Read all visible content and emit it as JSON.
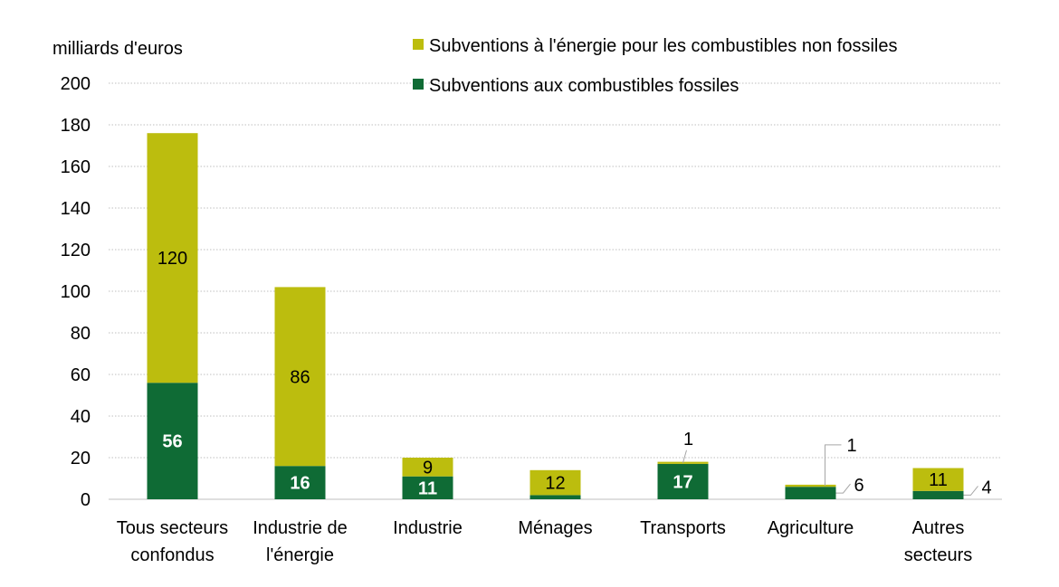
{
  "chart_data": {
    "type": "bar",
    "stacked": true,
    "ylabel": "milliards d'euros",
    "ylim": [
      0,
      200
    ],
    "yticks": [
      0,
      20,
      40,
      60,
      80,
      100,
      120,
      140,
      160,
      180,
      200
    ],
    "grid": true,
    "legend_position": "top-right",
    "categories": [
      [
        "Tous secteurs",
        "confondus"
      ],
      [
        "Industrie de",
        "l'énergie"
      ],
      [
        "Industrie"
      ],
      [
        "Ménages"
      ],
      [
        "Transports"
      ],
      [
        "Agriculture"
      ],
      [
        "Autres",
        "secteurs"
      ]
    ],
    "series": [
      {
        "name": "Subventions aux combustibles fossiles",
        "color": "#0f6b35",
        "values": [
          56,
          16,
          11,
          2,
          17,
          6,
          4
        ],
        "labels": [
          "56",
          "16",
          "11",
          "",
          "17",
          "6",
          "4"
        ]
      },
      {
        "name": "Subventions à l'énergie pour les combustibles non fossiles",
        "color": "#bcbd0e",
        "values": [
          120,
          86,
          9,
          12,
          1,
          1,
          11
        ],
        "labels": [
          "120",
          "86",
          "9",
          "12",
          "1",
          "1",
          "11"
        ]
      }
    ]
  }
}
